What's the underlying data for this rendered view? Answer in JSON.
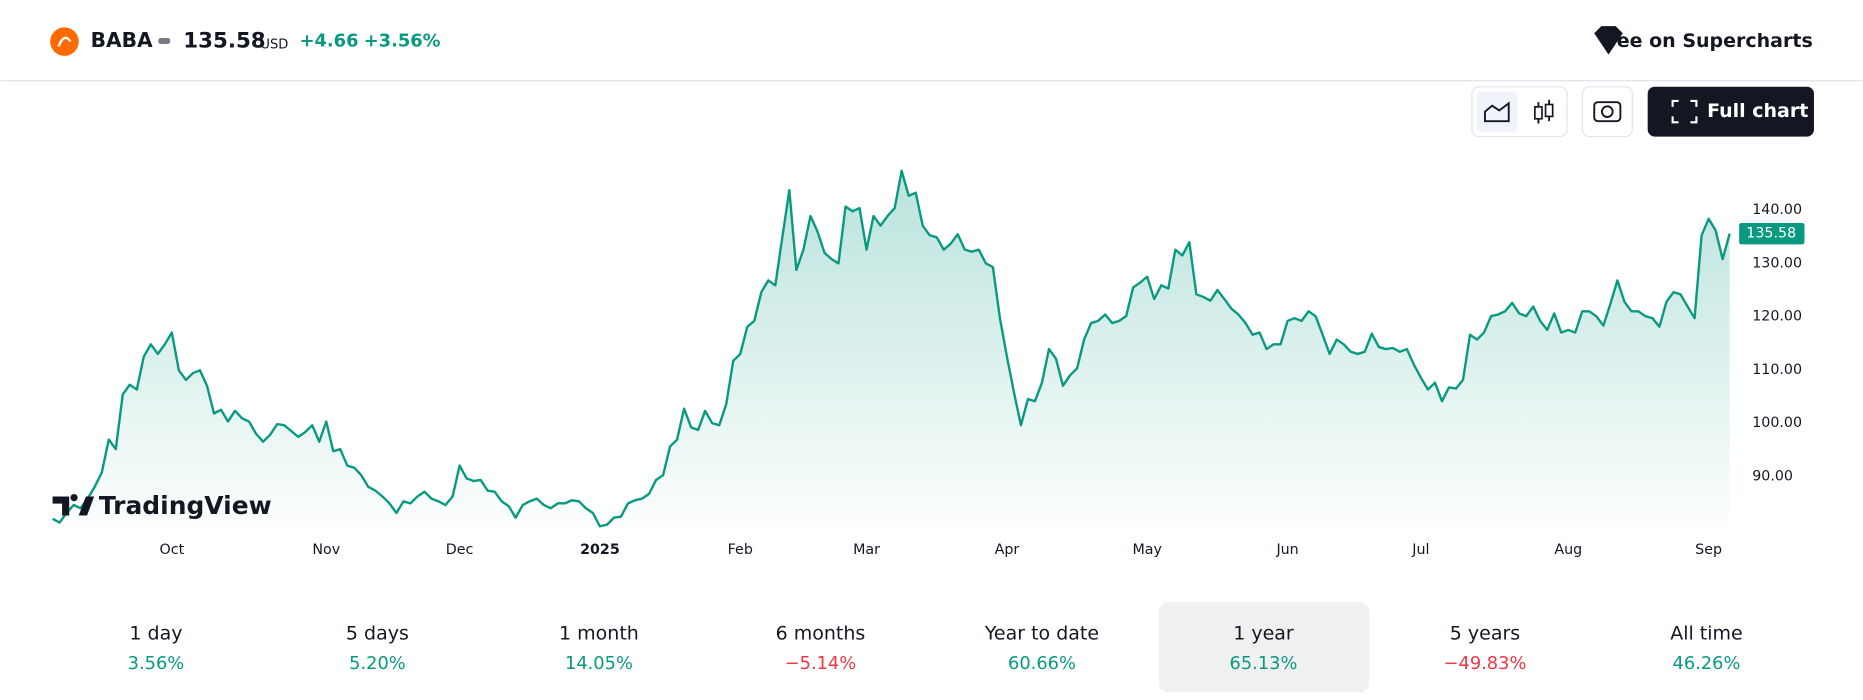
{
  "header": {
    "symbol": "BABA",
    "price": "135.58",
    "currency": "USD",
    "change": "+4.66",
    "change_percent": "+3.56%",
    "supercharts": "See on Supercharts"
  },
  "toolbar": {
    "full_chart": "Full chart"
  },
  "logo": "TradingView",
  "chart_data": {
    "type": "line",
    "series": [
      {
        "name": "BABA",
        "color": "#089981",
        "values": [
          82.0,
          81.3,
          83.1,
          84.6,
          84.0,
          85.8,
          88.0,
          90.7,
          96.9,
          95.1,
          105.4,
          107.2,
          106.3,
          112.5,
          114.8,
          113.0,
          114.8,
          117.0,
          109.9,
          108.1,
          109.4,
          109.9,
          107.0,
          101.8,
          102.5,
          100.3,
          102.3,
          100.9,
          100.3,
          98.0,
          96.5,
          97.8,
          99.8,
          99.6,
          98.5,
          97.4,
          98.3,
          99.6,
          96.5,
          100.3,
          94.7,
          95.1,
          92.0,
          91.6,
          90.2,
          88.0,
          87.3,
          86.2,
          84.9,
          83.1,
          85.3,
          84.9,
          86.2,
          87.1,
          85.8,
          85.3,
          84.6,
          86.2,
          92.0,
          89.6,
          89.1,
          89.3,
          87.3,
          87.1,
          85.3,
          84.4,
          82.2,
          84.6,
          85.3,
          85.8,
          84.6,
          84.0,
          84.9,
          84.9,
          85.5,
          85.3,
          84.0,
          83.1,
          80.6,
          80.9,
          82.2,
          82.4,
          84.9,
          85.5,
          85.8,
          86.7,
          89.3,
          90.2,
          95.6,
          96.9,
          102.7,
          99.2,
          98.7,
          102.3,
          100.0,
          99.6,
          103.6,
          111.7,
          113.0,
          118.1,
          119.2,
          124.6,
          126.8,
          125.9,
          134.9,
          143.8,
          128.8,
          132.6,
          138.9,
          136.0,
          132.0,
          130.8,
          130.0,
          140.7,
          139.8,
          140.4,
          132.6,
          138.9,
          137.1,
          138.9,
          140.4,
          147.4,
          142.7,
          143.3,
          137.1,
          135.3,
          134.9,
          132.6,
          133.7,
          135.5,
          132.6,
          132.2,
          132.6,
          130.0,
          129.3,
          119.7,
          112.5,
          105.8,
          99.6,
          104.5,
          104.1,
          107.6,
          113.9,
          112.1,
          107.0,
          109.0,
          110.3,
          115.7,
          118.8,
          119.2,
          120.4,
          118.8,
          119.2,
          120.1,
          125.5,
          126.4,
          127.5,
          123.3,
          125.9,
          125.3,
          132.6,
          131.5,
          134.0,
          124.2,
          123.7,
          123.0,
          125.0,
          123.3,
          121.5,
          120.4,
          118.8,
          116.6,
          117.0,
          113.9,
          114.8,
          114.8,
          119.2,
          119.7,
          119.2,
          121.0,
          120.1,
          116.6,
          113.0,
          115.7,
          114.8,
          113.4,
          113.0,
          113.4,
          116.8,
          114.3,
          113.9,
          114.1,
          113.4,
          113.9,
          111.0,
          108.5,
          106.3,
          107.6,
          104.1,
          106.7,
          106.5,
          108.1,
          116.6,
          115.7,
          117.0,
          120.1,
          120.4,
          121.0,
          122.6,
          120.6,
          120.1,
          121.9,
          119.2,
          117.5,
          120.6,
          117.0,
          117.5,
          117.0,
          121.0,
          121.0,
          120.1,
          118.3,
          122.4,
          126.8,
          122.8,
          121.0,
          121.0,
          120.1,
          119.7,
          118.1,
          122.8,
          124.6,
          124.2,
          121.9,
          119.7,
          135.3,
          138.4,
          136.2,
          130.8,
          135.58
        ]
      }
    ],
    "ylim": [
      80,
      150
    ],
    "yticks": [
      {
        "value": 90,
        "label": "90.00"
      },
      {
        "value": 100,
        "label": "100.00"
      },
      {
        "value": 110,
        "label": "110.00"
      },
      {
        "value": 120,
        "label": "120.00"
      },
      {
        "value": 130,
        "label": "130.00"
      },
      {
        "value": 140,
        "label": "140.00"
      }
    ],
    "xticks": [
      {
        "value": 17,
        "label": "Oct"
      },
      {
        "value": 39,
        "label": "Nov"
      },
      {
        "value": 58,
        "label": "Dec"
      },
      {
        "value": 78,
        "label": "2025"
      },
      {
        "value": 98,
        "label": "Feb"
      },
      {
        "value": 116,
        "label": "Mar"
      },
      {
        "value": 136,
        "label": "Apr"
      },
      {
        "value": 156,
        "label": "May"
      },
      {
        "value": 176,
        "label": "Jun"
      },
      {
        "value": 195,
        "label": "Jul"
      },
      {
        "value": 216,
        "label": "Aug"
      },
      {
        "value": 236,
        "label": "Sep"
      }
    ]
  },
  "periods": [
    {
      "label": "1 day",
      "change": "3.56%"
    },
    {
      "label": "5 days",
      "change": "5.20%"
    },
    {
      "label": "1 month",
      "change": "14.05%"
    },
    {
      "label": "6 months",
      "change": "−5.14%"
    },
    {
      "label": "Year to date",
      "change": "60.66%"
    },
    {
      "label": "1 year",
      "change": "65.13%",
      "selected": true
    },
    {
      "label": "5 years",
      "change": "−49.83%"
    },
    {
      "label": "All time",
      "change": "46.26%"
    }
  ]
}
